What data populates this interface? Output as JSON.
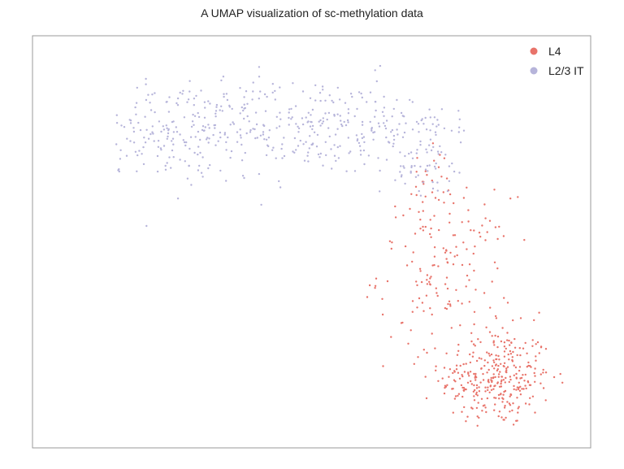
{
  "chart_data": {
    "type": "scatter",
    "title": "A UMAP visualization of sc-methylation data",
    "xlabel": "",
    "ylabel": "",
    "grid": false,
    "axis_ticks": false,
    "legend_position": "top-right",
    "series": [
      {
        "name": "L4",
        "color": "#E8736A",
        "clusters": [
          {
            "cx": 0.83,
            "cy": 0.17,
            "sx": 0.05,
            "sy": 0.06,
            "n": 330
          },
          {
            "cx": 0.74,
            "cy": 0.43,
            "sx": 0.06,
            "sy": 0.09,
            "n": 150
          },
          {
            "cx": 0.72,
            "cy": 0.62,
            "sx": 0.03,
            "sy": 0.06,
            "n": 30
          }
        ]
      },
      {
        "name": "L2/3 IT",
        "color": "#B6B4DA",
        "clusters": [
          {
            "cx": 0.26,
            "cy": 0.77,
            "sx": 0.11,
            "sy": 0.06,
            "n": 260
          },
          {
            "cx": 0.52,
            "cy": 0.78,
            "sx": 0.11,
            "sy": 0.06,
            "n": 240
          },
          {
            "cx": 0.7,
            "cy": 0.72,
            "sx": 0.04,
            "sy": 0.06,
            "n": 80
          }
        ]
      }
    ],
    "xlim": [
      0,
      1
    ],
    "ylim": [
      0,
      1
    ]
  }
}
